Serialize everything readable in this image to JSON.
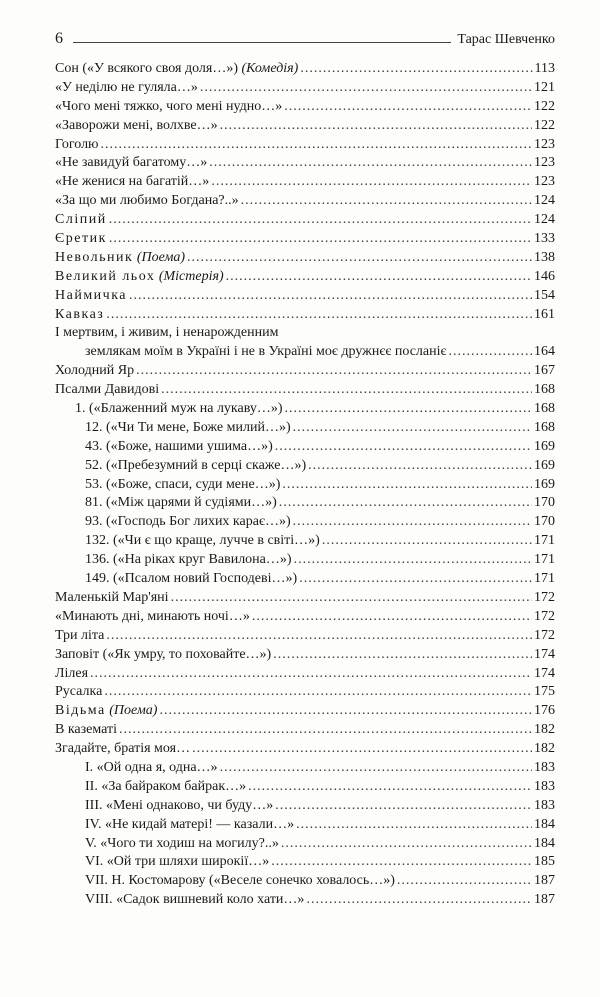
{
  "page_number": "6",
  "author": "Тарас Шевченко",
  "entries": [
    {
      "type": "row",
      "label_html": "Сон («У всякого своя доля…») <span class='italic'>(Комедія)</span>",
      "page": "113"
    },
    {
      "type": "row",
      "label_html": "«У неділю не гуляла…»",
      "page": "121"
    },
    {
      "type": "row",
      "label_html": "«Чого мені тяжко, чого мені нудно…»",
      "page": "122"
    },
    {
      "type": "row",
      "label_html": "«Заворожи мені, волхве…»",
      "page": "122"
    },
    {
      "type": "row",
      "label_html": "Гоголю",
      "page": "123"
    },
    {
      "type": "row",
      "label_html": "«Не завидуй багатому…»",
      "page": "123"
    },
    {
      "type": "row",
      "label_html": "«Не женися на багатій…»",
      "page": "123"
    },
    {
      "type": "row",
      "label_html": "«За що ми любимо Богдана?..»",
      "page": "124"
    },
    {
      "type": "row",
      "label_html": "<span class='sp'>Сліпий</span>",
      "page": "124"
    },
    {
      "type": "row",
      "label_html": "<span class='sp'>Єретик</span>",
      "page": "133"
    },
    {
      "type": "row",
      "label_html": "<span class='sp'>Невольник</span> <span class='italic'>(Поема)</span>",
      "page": "138"
    },
    {
      "type": "row",
      "label_html": "<span class='sp'>Великий льох</span> <span class='italic'>(Містерія)</span>",
      "page": "146"
    },
    {
      "type": "row",
      "label_html": "<span class='sp'>Наймичка</span>",
      "page": "154"
    },
    {
      "type": "row",
      "label_html": "<span class='sp'>Кавказ</span>",
      "page": "161"
    },
    {
      "type": "text",
      "text": "І мертвим, і живим, і ненарожденним"
    },
    {
      "type": "row",
      "indent": "continuation",
      "label_html": "землякам моїм в Україні і не в Україні моє дружнєє посланіє",
      "page": "164"
    },
    {
      "type": "row",
      "label_html": "Холодний Яр",
      "page": "167"
    },
    {
      "type": "row",
      "label_html": "Псалми Давидові",
      "page": "168"
    },
    {
      "type": "row",
      "indent": "i1",
      "label_html": "1. («Блаженний муж на лукаву…»)",
      "page": "168"
    },
    {
      "type": "row",
      "indent": "i2",
      "label_html": "12. («Чи Ти мене, Боже милий…»)",
      "page": "168"
    },
    {
      "type": "row",
      "indent": "i2",
      "label_html": "43. («Боже, нашими ушима…»)",
      "page": "169"
    },
    {
      "type": "row",
      "indent": "i2",
      "label_html": "52. («Пребезумний в серці скаже…»)",
      "page": "169"
    },
    {
      "type": "row",
      "indent": "i2",
      "label_html": "53. («Боже, спаси, суди мене…»)",
      "page": "169"
    },
    {
      "type": "row",
      "indent": "i2",
      "label_html": "81. («Між царями й судіями…»)",
      "page": "170"
    },
    {
      "type": "row",
      "indent": "i2",
      "label_html": "93. («Господь Бог лихих карає…»)",
      "page": "170"
    },
    {
      "type": "row",
      "indent": "i2",
      "label_html": "132. («Чи є що краще, лучче в світі…»)",
      "page": "171"
    },
    {
      "type": "row",
      "indent": "i2",
      "label_html": "136. («На ріках круг Вавилона…»)",
      "page": "171"
    },
    {
      "type": "row",
      "indent": "i2",
      "label_html": "149. («Псалом новий Господеві…»)",
      "page": "171"
    },
    {
      "type": "row",
      "label_html": "Маленькій Мар'яні",
      "page": "172"
    },
    {
      "type": "row",
      "label_html": "«Минають дні, минають ночі…»",
      "page": "172"
    },
    {
      "type": "row",
      "label_html": "Три літа",
      "page": "172"
    },
    {
      "type": "row",
      "label_html": "Заповіт («Як умру, то поховайте…»)",
      "page": "174"
    },
    {
      "type": "row",
      "label_html": "Лілея",
      "page": "174"
    },
    {
      "type": "row",
      "label_html": "Русалка",
      "page": "175"
    },
    {
      "type": "row",
      "label_html": "<span class='sp'>Відьма</span> <span class='italic'>(Поема)</span>",
      "page": "176"
    },
    {
      "type": "row",
      "label_html": "В казематі",
      "page": "182"
    },
    {
      "type": "row",
      "label_html": "Згадайте, братія моя…",
      "page": "182"
    },
    {
      "type": "row",
      "indent": "i3",
      "label_html": "I. «Ой одна я, одна…»",
      "page": "183"
    },
    {
      "type": "row",
      "indent": "i3",
      "label_html": "II. «За байраком байрак…»",
      "page": "183"
    },
    {
      "type": "row",
      "indent": "i3",
      "label_html": "III. «Мені однаково, чи буду…»",
      "page": "183"
    },
    {
      "type": "row",
      "indent": "i3",
      "label_html": "IV. «Не кидай матері! — казали…»",
      "page": "184"
    },
    {
      "type": "row",
      "indent": "i3",
      "label_html": "V. «Чого ти ходиш на могилу?..»",
      "page": "184"
    },
    {
      "type": "row",
      "indent": "i3",
      "label_html": "VI. «Ой три шляхи широкії…»",
      "page": "185"
    },
    {
      "type": "row",
      "indent": "i3",
      "label_html": "VII. Н. Костомарову («Веселе сонечко ховалось…»)",
      "page": "187"
    },
    {
      "type": "row",
      "indent": "i3",
      "label_html": "VIII. «Садок вишневий коло хати…»",
      "page": "187"
    }
  ]
}
